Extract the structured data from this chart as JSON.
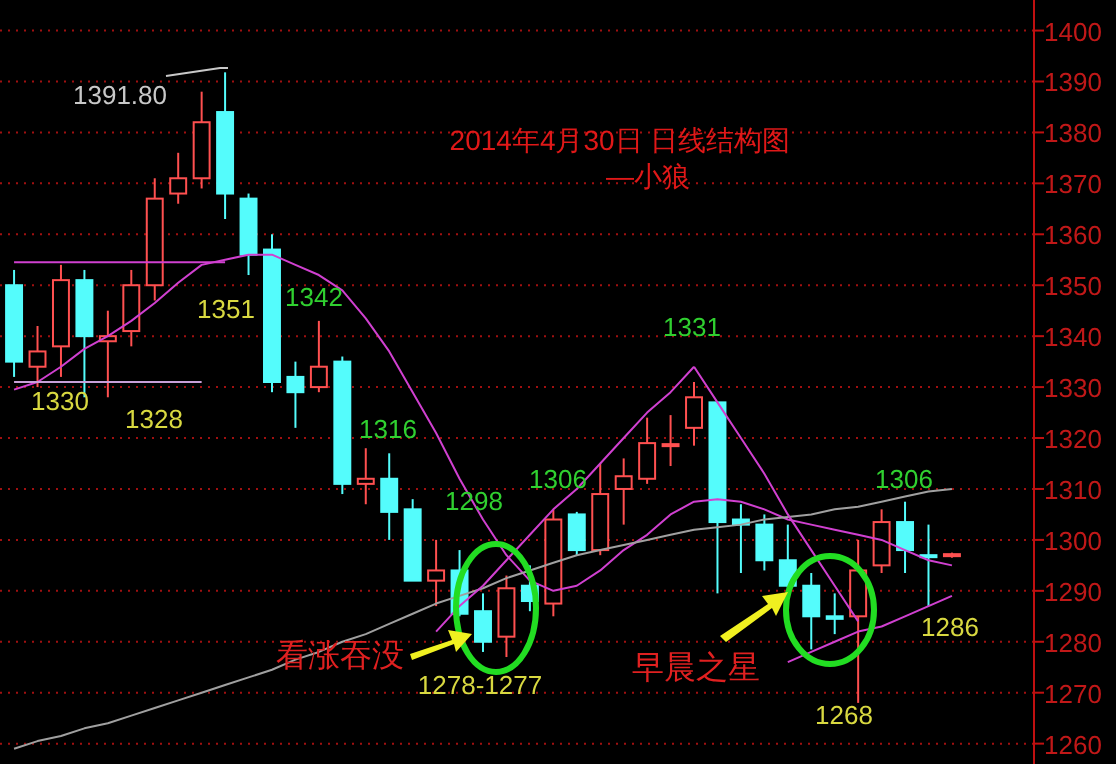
{
  "chart_data": {
    "type": "candlestick",
    "title": "2014年4月30日 日线结构图",
    "subtitle": "—小狼",
    "categories": [
      null,
      null,
      null,
      null,
      null,
      null,
      null,
      null,
      null,
      null,
      null,
      null,
      null,
      null,
      null,
      null,
      null,
      null,
      null,
      null,
      null,
      null,
      null,
      null,
      null,
      null,
      null,
      null,
      null,
      null,
      null,
      null,
      null,
      null,
      null,
      null,
      null,
      null,
      null,
      null,
      null
    ],
    "ohlc": [
      [
        1350,
        1353,
        1332,
        1335
      ],
      [
        1334,
        1342,
        1330,
        1337
      ],
      [
        1338,
        1354,
        1332,
        1351
      ],
      [
        1351,
        1353,
        1328,
        1340
      ],
      [
        1339,
        1345,
        1328,
        1340
      ],
      [
        1341,
        1353,
        1338,
        1350
      ],
      [
        1350,
        1371,
        1347,
        1367
      ],
      [
        1368,
        1376,
        1366,
        1371
      ],
      [
        1371,
        1388,
        1369,
        1382
      ],
      [
        1384,
        1391.8,
        1363,
        1368
      ],
      [
        1367,
        1368,
        1352,
        1356
      ],
      [
        1357,
        1360,
        1329,
        1331
      ],
      [
        1332,
        1335,
        1322,
        1329
      ],
      [
        1330,
        1343,
        1329,
        1334
      ],
      [
        1335,
        1336,
        1309,
        1311
      ],
      [
        1311,
        1318,
        1307,
        1312
      ],
      [
        1312,
        1317,
        1300,
        1305.5
      ],
      [
        1306,
        1308,
        1292,
        1292
      ],
      [
        1292,
        1300,
        1287,
        1294
      ],
      [
        1294,
        1298,
        1285,
        1285.5
      ],
      [
        1286,
        1289.5,
        1278,
        1280
      ],
      [
        1281,
        1293,
        1277,
        1290.5
      ],
      [
        1291,
        1295,
        1286,
        1288
      ],
      [
        1287.5,
        1306,
        1285,
        1304
      ],
      [
        1305,
        1305.5,
        1297,
        1298
      ],
      [
        1298,
        1315,
        1297,
        1309
      ],
      [
        1310,
        1316,
        1303,
        1312.5
      ],
      [
        1312,
        1324,
        1311,
        1319
      ],
      [
        1318.5,
        1324.5,
        1314.5,
        1318.8
      ],
      [
        1322,
        1331,
        1318.5,
        1328
      ],
      [
        1327,
        1327,
        1289.5,
        1303.5
      ],
      [
        1304,
        1307,
        1293.5,
        1303
      ],
      [
        1303,
        1305,
        1294,
        1296
      ],
      [
        1296,
        1303,
        1290,
        1291
      ],
      [
        1291,
        1293.5,
        1278.5,
        1285
      ],
      [
        1285,
        1289.5,
        1281.5,
        1284.5
      ],
      [
        1285,
        1300,
        1268,
        1294
      ],
      [
        1295,
        1306,
        1293.5,
        1303.5
      ],
      [
        1303.5,
        1307.5,
        1293.5,
        1298
      ],
      [
        1297,
        1303,
        1287,
        1296.8
      ],
      [
        1297,
        1297.5,
        1296.5,
        1297.2
      ]
    ],
    "colors": [
      "#54fcfc",
      "#ff5050",
      "#ff5050",
      "#54fcfc",
      "#ff5050",
      "#ff5050",
      "#ff5050",
      "#ff5050",
      "#ff5050",
      "#54fcfc",
      "#54fcfc",
      "#54fcfc",
      "#54fcfc",
      "#ff5050",
      "#54fcfc",
      "#ff5050",
      "#54fcfc",
      "#54fcfc",
      "#ff5050",
      "#54fcfc",
      "#54fcfc",
      "#ff5050",
      "#54fcfc",
      "#ff5050",
      "#54fcfc",
      "#ff5050",
      "#ff5050",
      "#ff5050",
      "#ff5050",
      "#ff5050",
      "#54fcfc",
      "#54fcfc",
      "#54fcfc",
      "#54fcfc",
      "#54fcfc",
      "#54fcfc",
      "#ff5050",
      "#ff5050",
      "#54fcfc",
      "#54fcfc",
      "#ff5050"
    ],
    "series": [
      {
        "type": "line",
        "color": "#d040d0",
        "values": [
          1329.5,
          1331,
          1334,
          1337.5,
          1340,
          1343,
          1346.5,
          1350.5,
          1354,
          1355,
          1356,
          1356,
          1354,
          1352,
          1349,
          1343.5,
          1337,
          1329,
          1321,
          1312,
          1304,
          1297,
          1292,
          1290,
          1291,
          1294,
          1298,
          1301,
          1305,
          1307.5,
          1308,
          1307.5,
          1306,
          1304,
          1303,
          1302,
          1301,
          1300,
          1298,
          1296,
          1295
        ]
      },
      {
        "type": "line",
        "color": "#a0a0a0",
        "values": [
          1259,
          1260.5,
          1261.5,
          1263,
          1264,
          1265.5,
          1267,
          1268.5,
          1270,
          1271.5,
          1273,
          1274.5,
          1276.5,
          1278,
          1280,
          1281.5,
          1283.5,
          1285.5,
          1287.5,
          1289,
          1290.5,
          1292.5,
          1294,
          1295.5,
          1297,
          1298,
          1299,
          1300,
          1301,
          1302,
          1302.5,
          1303,
          1304,
          1304.5,
          1305,
          1306,
          1306.5,
          1307.5,
          1308.5,
          1309.5,
          1310
        ]
      },
      {
        "type": "line",
        "color": "#d040d0",
        "values": [
          null,
          null,
          null,
          null,
          null,
          null,
          null,
          null,
          null,
          null,
          null,
          null,
          null,
          null,
          null,
          null,
          null,
          null,
          1282,
          1287,
          1291,
          1296,
          1301,
          1306,
          1310,
          1315,
          1320,
          1325,
          1329,
          1334,
          null,
          null,
          null,
          null,
          null,
          null,
          null,
          null,
          null,
          null,
          null
        ]
      },
      {
        "type": "line",
        "color": "#d040d0",
        "values": [
          null,
          null,
          null,
          null,
          null,
          null,
          null,
          null,
          null,
          null,
          null,
          null,
          null,
          null,
          null,
          null,
          null,
          null,
          null,
          null,
          null,
          null,
          null,
          null,
          null,
          null,
          null,
          null,
          null,
          1334,
          1327,
          1320,
          1313,
          1305,
          1298,
          1291,
          1284,
          null,
          null,
          null,
          null
        ]
      },
      {
        "type": "line",
        "color": "#d040d0",
        "values": [
          null,
          null,
          null,
          null,
          null,
          null,
          null,
          null,
          null,
          null,
          null,
          null,
          null,
          null,
          null,
          null,
          null,
          null,
          null,
          null,
          null,
          null,
          null,
          null,
          null,
          null,
          null,
          null,
          null,
          null,
          null,
          null,
          null,
          1276,
          1278,
          1280,
          1282,
          1283,
          1285,
          1287,
          1289
        ]
      },
      {
        "type": "line",
        "color": "#d040d0",
        "values": [
          1354.5,
          1354.5,
          1354.5,
          1354.5,
          1354.5,
          1354.5,
          1354.5,
          1354.5,
          1354.5,
          1354.5,
          null,
          null,
          null,
          null,
          null,
          null,
          null,
          null,
          null,
          null,
          null,
          null,
          null,
          null,
          null,
          null,
          null,
          null,
          null,
          null,
          null,
          null,
          null,
          null,
          null,
          null,
          null,
          null,
          null,
          null,
          null
        ]
      },
      {
        "type": "line",
        "color": "#c8a0d8",
        "values": [
          1331,
          1331,
          1331,
          1331,
          1331,
          1331,
          1331,
          1331,
          1331,
          null,
          null,
          null,
          null,
          null,
          null,
          null,
          null,
          null,
          null,
          null,
          null,
          null,
          null,
          null,
          null,
          null,
          null,
          null,
          null,
          null,
          null,
          null,
          null,
          null,
          null,
          null,
          null,
          null,
          null,
          null,
          null
        ]
      }
    ],
    "ylim": [
      1256,
      1406
    ],
    "yticks": [
      1260,
      1270,
      1280,
      1290,
      1300,
      1310,
      1320,
      1330,
      1340,
      1350,
      1360,
      1370,
      1380,
      1390,
      1400
    ],
    "grid": "y",
    "tick_labels": "y",
    "annotations": [
      "1391.80",
      "1351",
      "1342",
      "1330",
      "1328",
      "1316",
      "1298",
      "1306",
      "1278-1277",
      "看涨吞没",
      "1331",
      "1306",
      "1286",
      "早晨之星",
      "1268"
    ]
  }
}
